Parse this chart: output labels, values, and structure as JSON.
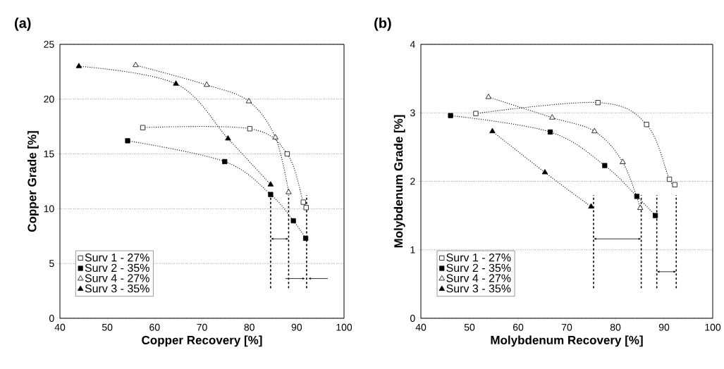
{
  "chart_data": [
    {
      "type": "line",
      "title": "(a)",
      "xlabel": "Copper Recovery [%]",
      "ylabel": "Copper Grade [%]",
      "xlim": [
        40,
        100
      ],
      "xticks": [
        40,
        50,
        60,
        70,
        80,
        90,
        100
      ],
      "ylim": [
        0,
        25
      ],
      "yticks": [
        0,
        5,
        10,
        15,
        20,
        25
      ],
      "grid": "y",
      "legend": "bottom left",
      "line_style": "dotted",
      "series": [
        {
          "name": "Surv 1 - 27%",
          "marker": "square",
          "color": "#ffffff",
          "x": [
            57.5,
            80.1,
            88.0,
            91.4,
            92.0
          ],
          "values": [
            17.4,
            17.3,
            15.0,
            10.6,
            10.1
          ]
        },
        {
          "name": "Surv 2 - 35%",
          "marker": "square",
          "color": "#000000",
          "x": [
            54.3,
            74.8,
            84.5,
            89.3,
            91.9
          ],
          "values": [
            16.2,
            14.3,
            11.3,
            8.9,
            7.3
          ]
        },
        {
          "name": "Surv 4 - 27%",
          "marker": "triangle",
          "color": "#ffffff",
          "x": [
            56.0,
            71.0,
            79.9,
            85.5,
            88.3
          ],
          "values": [
            23.1,
            21.3,
            19.8,
            16.5,
            11.5
          ]
        },
        {
          "name": "Surv 3 - 35%",
          "marker": "triangle",
          "color": "#000000",
          "x": [
            44.0,
            64.5,
            75.5,
            84.5
          ],
          "values": [
            23.0,
            21.4,
            16.4,
            12.2
          ]
        }
      ],
      "ref_lines": [
        {
          "axis": "x",
          "value": 84.5,
          "line_style": "dashed"
        },
        {
          "axis": "x",
          "value": 88.3,
          "line_style": "dashed"
        },
        {
          "axis": "x",
          "value": 92.1,
          "line_style": "dashed"
        }
      ]
    },
    {
      "type": "line",
      "title": "(b)",
      "xlabel": "Molybdenum Recovery [%]",
      "ylabel": "Molybdenum Grade [%]",
      "xlim": [
        40,
        100
      ],
      "xticks": [
        40,
        50,
        60,
        70,
        80,
        90,
        100
      ],
      "ylim": [
        0,
        4
      ],
      "yticks": [
        0,
        1,
        2,
        3,
        4
      ],
      "grid": "y",
      "legend": "bottom left",
      "line_style": "dotted",
      "series": [
        {
          "name": "Surv 1 - 27%",
          "marker": "square",
          "color": "#ffffff",
          "x": [
            51.3,
            76.4,
            86.4,
            91.1,
            92.2
          ],
          "values": [
            2.99,
            3.15,
            2.83,
            2.03,
            1.95
          ]
        },
        {
          "name": "Surv 2 - 35%",
          "marker": "square",
          "color": "#000000",
          "x": [
            46.1,
            66.6,
            77.8,
            84.4,
            88.2
          ],
          "values": [
            2.96,
            2.72,
            2.23,
            1.78,
            1.5
          ]
        },
        {
          "name": "Surv 4 - 27%",
          "marker": "triangle",
          "color": "#ffffff",
          "x": [
            53.9,
            67.0,
            75.7,
            81.5,
            85.1
          ],
          "values": [
            3.23,
            2.93,
            2.73,
            2.28,
            1.61
          ]
        },
        {
          "name": "Surv 3 - 35%",
          "marker": "triangle",
          "color": "#000000",
          "x": [
            54.7,
            65.5,
            75.0
          ],
          "values": [
            2.73,
            2.13,
            1.63
          ]
        }
      ],
      "ref_lines": [
        {
          "axis": "x",
          "value": 75.5,
          "line_style": "dashed"
        },
        {
          "axis": "x",
          "value": 85.3,
          "line_style": "dashed"
        },
        {
          "axis": "x",
          "value": 88.5,
          "line_style": "dashed"
        },
        {
          "axis": "x",
          "value": 92.5,
          "line_style": "dashed"
        }
      ]
    }
  ]
}
